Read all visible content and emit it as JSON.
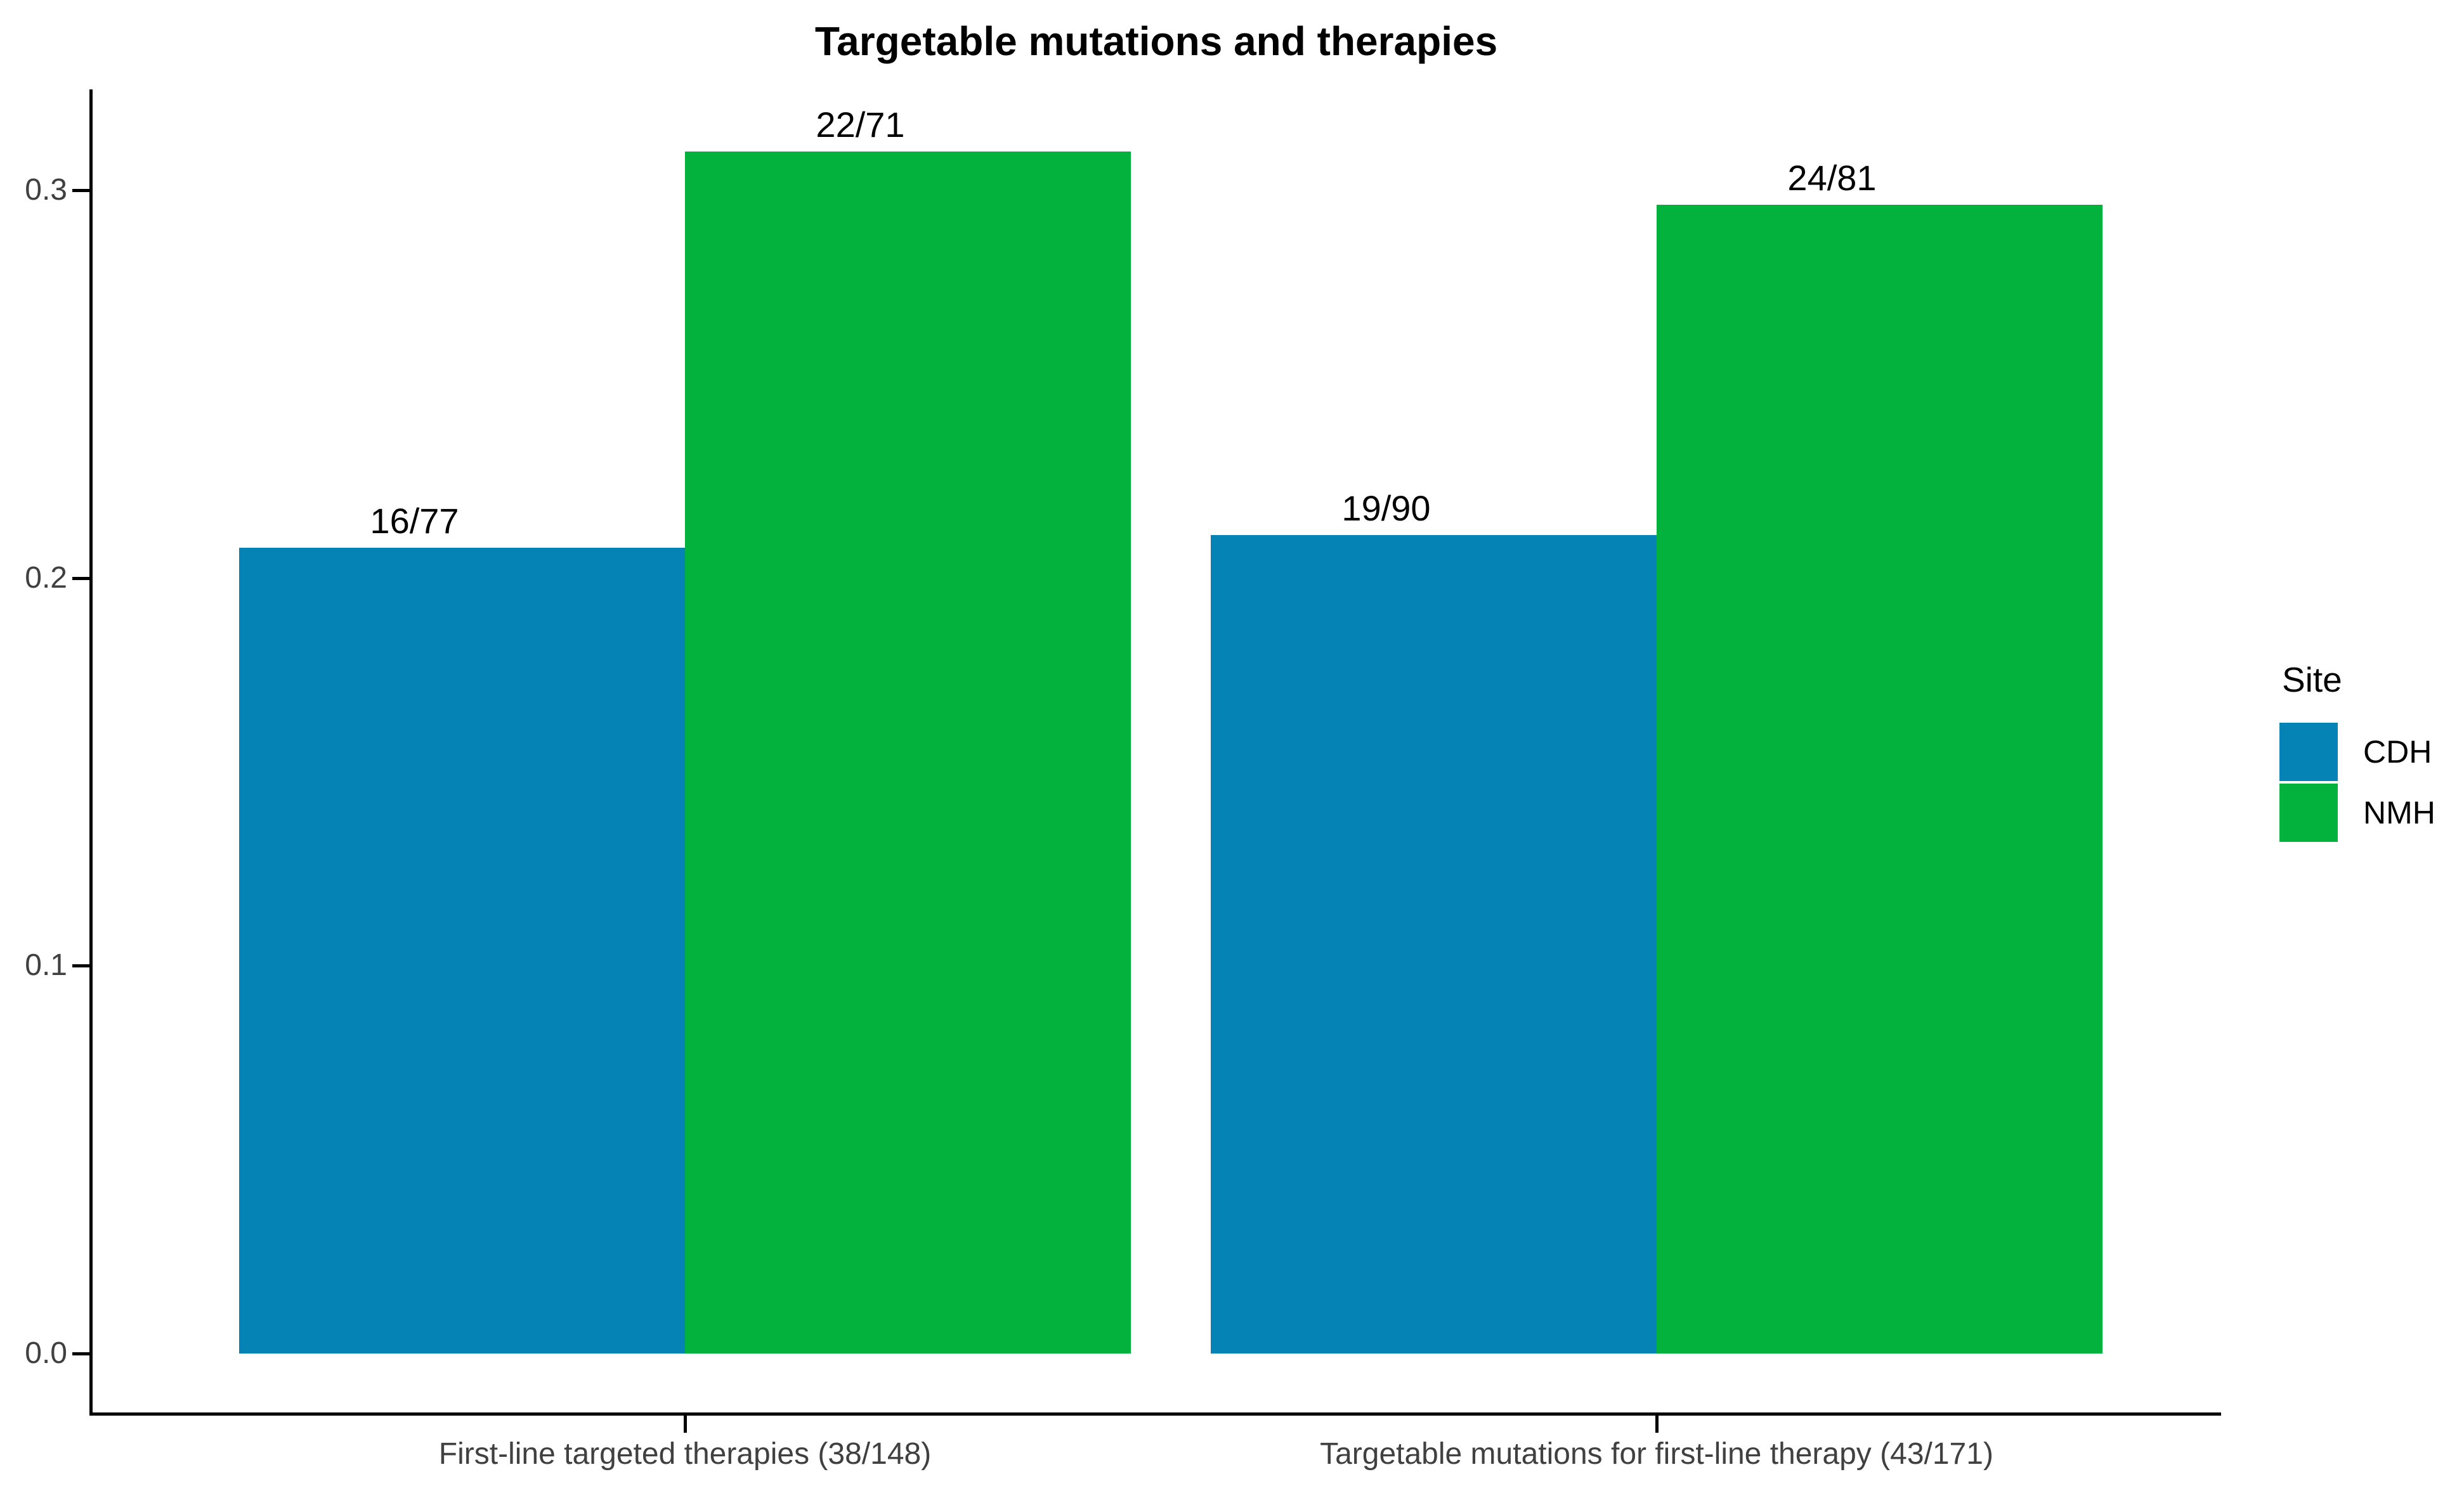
{
  "chart_data": {
    "type": "bar",
    "title": "Targetable mutations and therapies",
    "categories": [
      "First-line targeted therapies (38/148)",
      "Targetable mutations for first-line therapy (43/171)"
    ],
    "series": [
      {
        "name": "CDH",
        "color": "#0583B5",
        "values": [
          0.2078,
          0.2111
        ],
        "labels": [
          "16/77",
          "19/90"
        ]
      },
      {
        "name": "NMH",
        "color": "#02B23C",
        "values": [
          0.3099,
          0.2963
        ],
        "labels": [
          "22/71",
          "24/81"
        ]
      }
    ],
    "ylabel": "",
    "xlabel": "",
    "ylim": [
      0,
      0.3257
    ],
    "yticks": [
      {
        "value": 0.0,
        "label": "0.0"
      },
      {
        "value": 0.1,
        "label": "0.1"
      },
      {
        "value": 0.2,
        "label": "0.2"
      },
      {
        "value": 0.3,
        "label": "0.3"
      }
    ],
    "legend_title": "Site",
    "legend_position": "right",
    "grid": false,
    "bar_label_format": "numerator/denominator"
  }
}
